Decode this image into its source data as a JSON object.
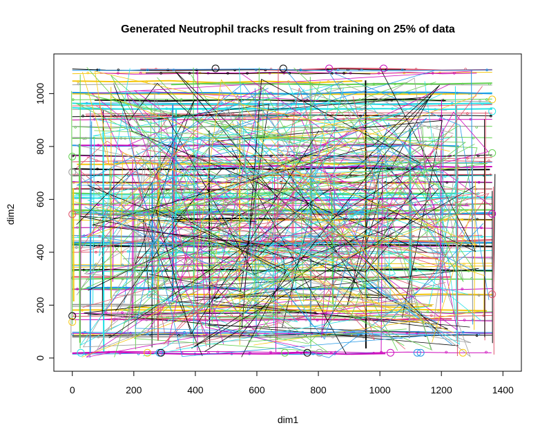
{
  "chart_data": {
    "type": "line",
    "title": "Generated Neutrophil tracks result from training on 25% of data",
    "xlabel": "dim1",
    "ylabel": "dim2",
    "xlim": [
      -60,
      1460
    ],
    "ylim": [
      -50,
      1150
    ],
    "xticks": [
      0,
      200,
      400,
      600,
      800,
      1000,
      1200,
      1400
    ],
    "yticks": [
      0,
      200,
      400,
      600,
      800,
      1000
    ],
    "grid": false,
    "legend": "none",
    "series_count_estimate": 200,
    "colors": [
      "#000000",
      "#DF536B",
      "#61D04F",
      "#2297E6",
      "#28E2E5",
      "#CD0BBC",
      "#F5C710",
      "#9E9E9E"
    ],
    "horizontal_tracks_y": [
      20,
      85,
      95,
      140,
      160,
      175,
      200,
      235,
      260,
      300,
      330,
      350,
      380,
      400,
      420,
      430,
      440,
      460,
      490,
      520,
      540,
      550,
      560,
      580,
      600,
      620,
      640,
      660,
      690,
      720,
      740,
      760,
      800,
      830,
      870,
      900,
      920,
      940,
      960,
      975,
      1000,
      1040,
      1080,
      1095
    ],
    "vertical_tracks_x": [
      0,
      20,
      60,
      100,
      130,
      200,
      260,
      275,
      330,
      400,
      450,
      540,
      600,
      660,
      720,
      780,
      850,
      950,
      1000,
      1100,
      1200,
      1250,
      1300,
      1340,
      1365
    ]
  }
}
